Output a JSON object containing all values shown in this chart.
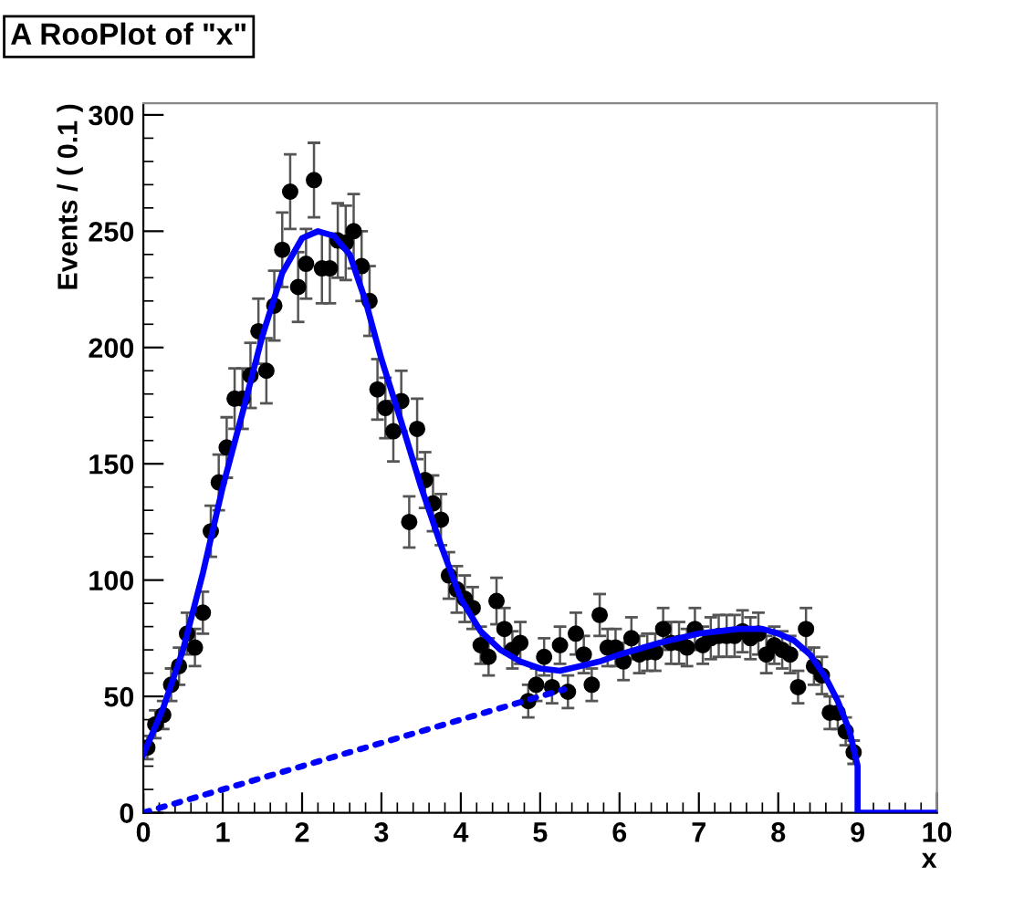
{
  "chart_data": {
    "type": "scatter",
    "title": "A RooPlot of \"x\"",
    "xlabel": "x",
    "ylabel": "Events / ( 0.1 )",
    "xlim": [
      0,
      10
    ],
    "ylim": [
      0,
      305
    ],
    "xticks": [
      0,
      1,
      2,
      3,
      4,
      5,
      6,
      7,
      8,
      9,
      10
    ],
    "yticks": [
      0,
      50,
      100,
      150,
      200,
      250,
      300
    ],
    "grid": false,
    "legend": false,
    "marker": "circle",
    "series": [
      {
        "color": "#000000",
        "x": [
          0.05,
          0.15,
          0.25,
          0.35,
          0.45,
          0.55,
          0.65,
          0.75,
          0.85,
          0.95,
          1.05,
          1.15,
          1.25,
          1.35,
          1.45,
          1.55,
          1.65,
          1.75,
          1.85,
          1.95,
          2.05,
          2.15,
          2.25,
          2.35,
          2.45,
          2.55,
          2.65,
          2.75,
          2.85,
          2.95,
          3.05,
          3.15,
          3.25,
          3.35,
          3.45,
          3.55,
          3.65,
          3.75,
          3.85,
          3.95,
          4.05,
          4.15,
          4.25,
          4.35,
          4.45,
          4.55,
          4.65,
          4.75,
          4.85,
          4.95,
          5.05,
          5.15,
          5.25,
          5.35,
          5.45,
          5.55,
          5.65,
          5.75,
          5.85,
          5.95,
          6.05,
          6.15,
          6.25,
          6.35,
          6.45,
          6.55,
          6.65,
          6.75,
          6.85,
          6.95,
          7.05,
          7.15,
          7.25,
          7.35,
          7.45,
          7.55,
          7.65,
          7.75,
          7.85,
          7.95,
          8.05,
          8.15,
          8.25,
          8.35,
          8.45,
          8.55,
          8.65,
          8.75,
          8.85,
          8.95
        ],
        "values": [
          28,
          38,
          42,
          55,
          63,
          77,
          71,
          86,
          121,
          142,
          157,
          178,
          178,
          188,
          207,
          190,
          218,
          242,
          267,
          226,
          236,
          272,
          234,
          234,
          246,
          245,
          250,
          235,
          220,
          182,
          174,
          164,
          177,
          125,
          165,
          143,
          133,
          126,
          102,
          96,
          92,
          88,
          72,
          67,
          91,
          79,
          70,
          73,
          48,
          55,
          67,
          54,
          72,
          52,
          77,
          68,
          55,
          85,
          71,
          71,
          65,
          75,
          68,
          69,
          69,
          79,
          73,
          73,
          71,
          79,
          72,
          75,
          76,
          76,
          76,
          78,
          75,
          77,
          68,
          72,
          70,
          68,
          54,
          79,
          63,
          59,
          43,
          43,
          35,
          26
        ],
        "errors": [
          5,
          6,
          6,
          7,
          8,
          9,
          8,
          9,
          11,
          12,
          13,
          13,
          13,
          14,
          14,
          14,
          15,
          16,
          16,
          15,
          15,
          16,
          15,
          15,
          16,
          16,
          16,
          15,
          15,
          13,
          13,
          13,
          13,
          11,
          13,
          12,
          12,
          11,
          10,
          10,
          10,
          9,
          8,
          8,
          10,
          9,
          8,
          9,
          7,
          7,
          8,
          7,
          8,
          7,
          9,
          8,
          7,
          9,
          8,
          8,
          8,
          9,
          8,
          8,
          8,
          9,
          9,
          9,
          8,
          9,
          8,
          9,
          9,
          9,
          9,
          9,
          9,
          9,
          8,
          8,
          8,
          8,
          7,
          9,
          8,
          8,
          7,
          7,
          6,
          5
        ]
      },
      {
        "type": "line",
        "color": "#0000ff",
        "line_style": "solid",
        "marker": "none",
        "x": [
          0,
          0.25,
          0.5,
          0.75,
          1,
          1.25,
          1.5,
          1.75,
          2,
          2.2,
          2.4,
          2.6,
          2.8,
          3,
          3.25,
          3.5,
          3.75,
          4,
          4.25,
          4.5,
          4.75,
          5,
          5.25,
          5.5,
          5.75,
          6,
          6.5,
          7,
          7.5,
          7.8,
          8,
          8.2,
          8.4,
          8.6,
          8.75,
          8.9,
          9,
          9,
          10
        ],
        "values": [
          25,
          45,
          70,
          103,
          140,
          172,
          205,
          232,
          247,
          250,
          248,
          240,
          220,
          195,
          168,
          140,
          115,
          92,
          78,
          70,
          65,
          62,
          61,
          63,
          65,
          68,
          73,
          77,
          79,
          79,
          77,
          74,
          68,
          58,
          48,
          35,
          20,
          0,
          0
        ]
      },
      {
        "type": "line",
        "color": "#0000ff",
        "line_style": "dotted",
        "marker": "none",
        "x": [
          0,
          5.3
        ],
        "values": [
          0,
          53
        ]
      }
    ]
  }
}
